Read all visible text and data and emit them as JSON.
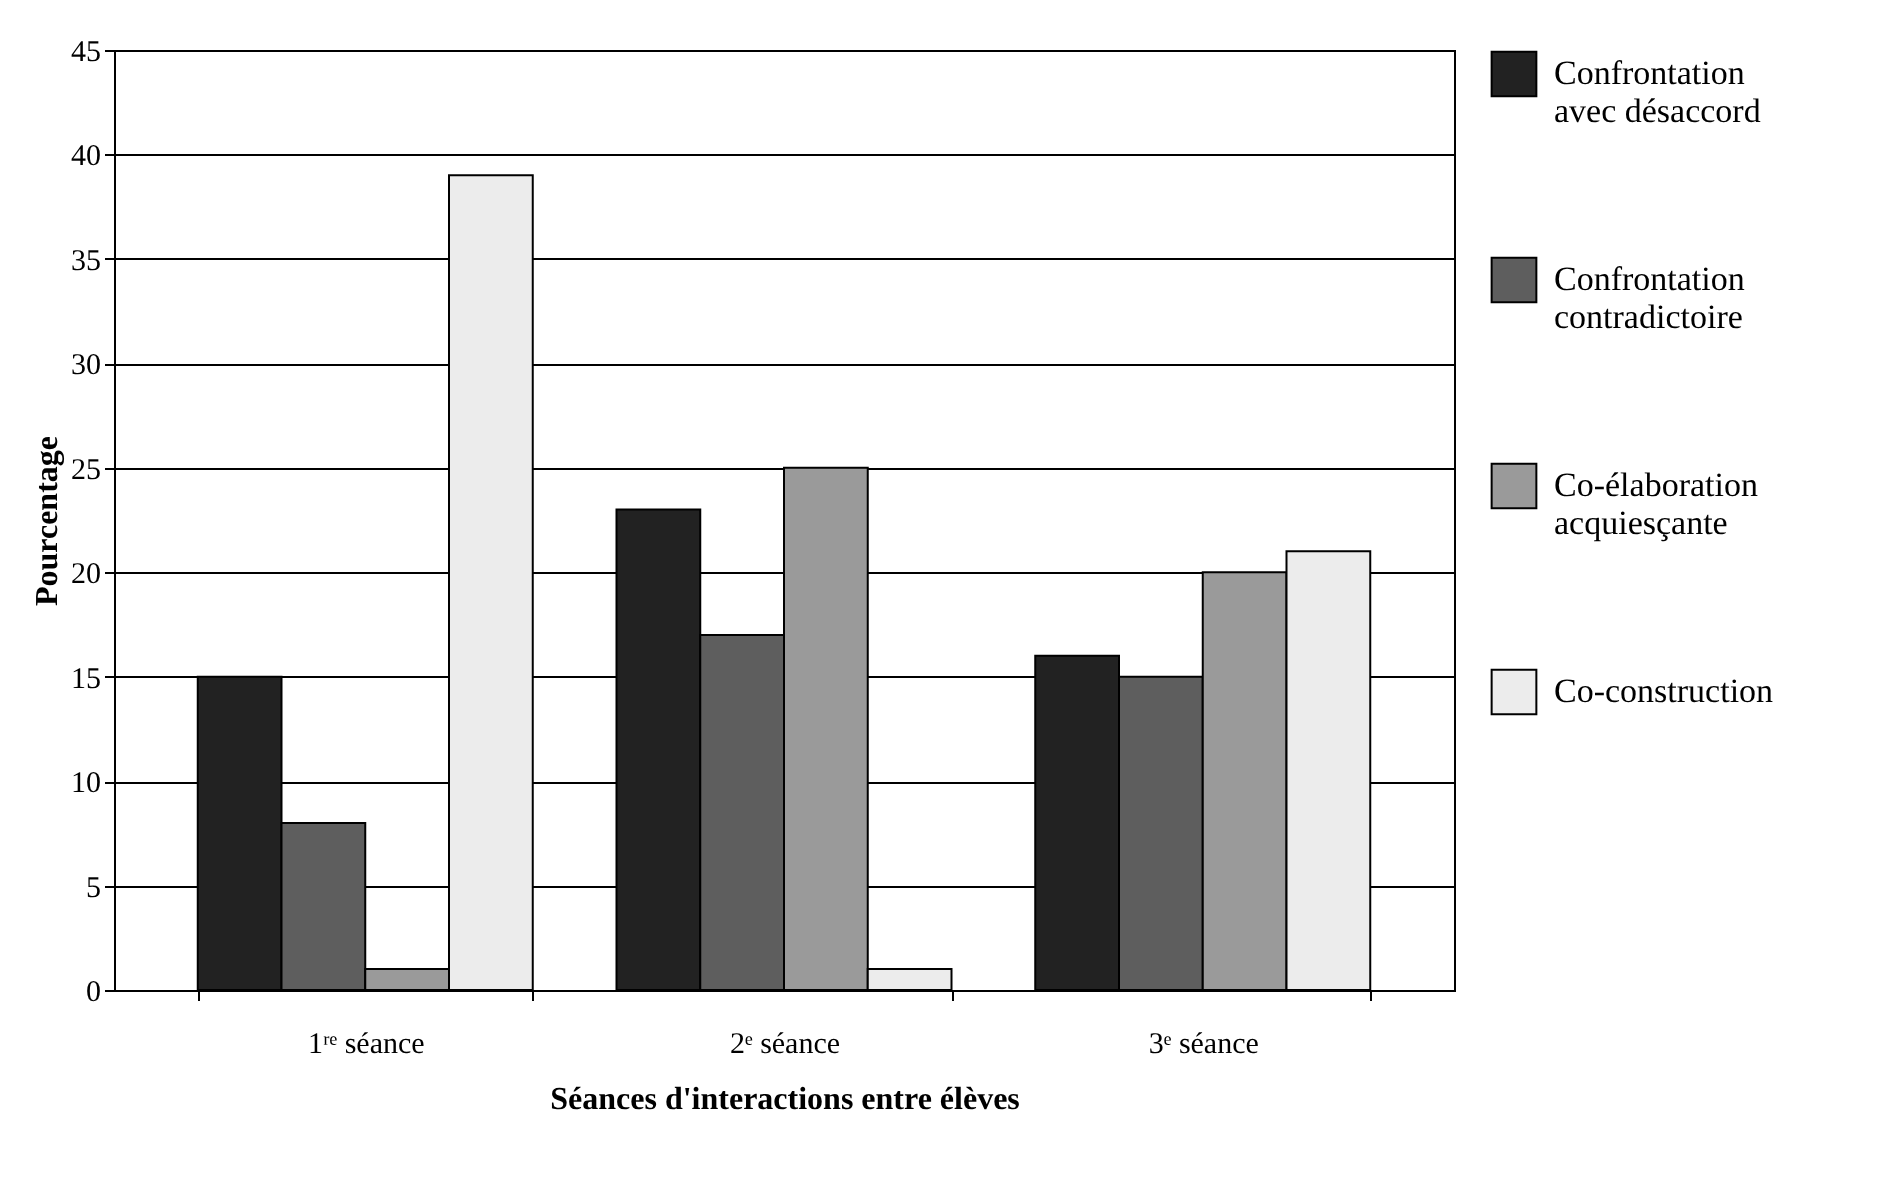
{
  "chart_data": {
    "type": "bar",
    "xlabel": "Séances d'interactions entre élèves",
    "ylabel": "Pourcentage",
    "categories": [
      "1ʳᵉ séance",
      "2ᵉ séance",
      "3ᵉ séance"
    ],
    "series": [
      {
        "name": "Confrontation avec désaccord",
        "color": "#222222",
        "values": [
          15,
          23,
          16
        ]
      },
      {
        "name": "Confrontation contradictoire",
        "color": "#5e5e5e",
        "values": [
          8,
          17,
          15
        ]
      },
      {
        "name": "Co-élaboration acquiesçante",
        "color": "#9a9a9a",
        "values": [
          1,
          25,
          20
        ]
      },
      {
        "name": "Co-construction",
        "color": "#ececec",
        "values": [
          39,
          1,
          21
        ]
      }
    ],
    "ylim": [
      0,
      45
    ],
    "yticks": [
      0,
      5,
      10,
      15,
      20,
      25,
      30,
      35,
      40,
      45
    ],
    "grid": "y",
    "legend": "right"
  }
}
